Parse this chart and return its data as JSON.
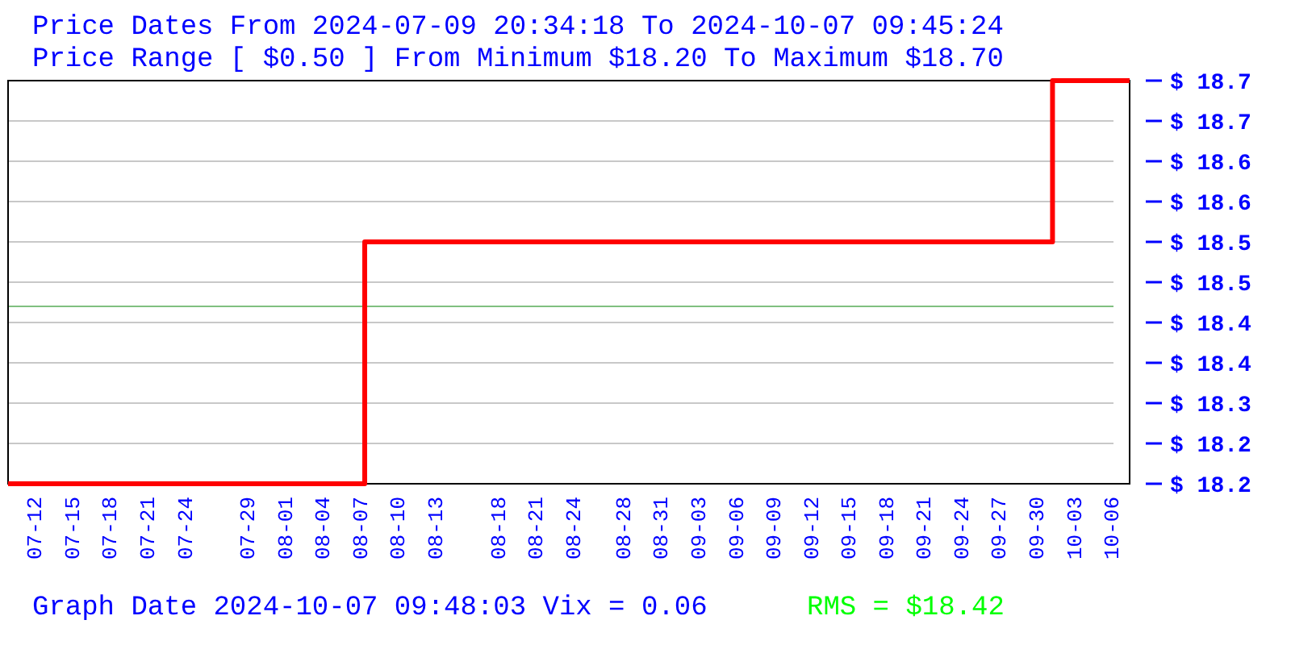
{
  "chart_data": {
    "type": "step",
    "title": "Price Dates From 2024-07-09 20:34:18 To 2024-10-07 09:45:24",
    "subtitle": "Price Range [ $0.50 ] From Minimum $18.20 To Maximum $18.70",
    "x": [
      "2024-07-09T20:34",
      "2024-08-07T08:00",
      "2024-10-01T06:00",
      "2024-10-07T09:45"
    ],
    "series": [
      {
        "color": "#ff0000",
        "values": [
          18.2,
          18.5,
          18.7,
          18.7
        ]
      }
    ],
    "xlim": [
      "2024-07-09T20:34",
      "2024-10-07T09:45"
    ],
    "xticks": [
      {
        "value": "2024-07-12",
        "label": "07-12"
      },
      {
        "value": "2024-07-15",
        "label": "07-15"
      },
      {
        "value": "2024-07-18",
        "label": "07-18"
      },
      {
        "value": "2024-07-21",
        "label": "07-21"
      },
      {
        "value": "2024-07-24",
        "label": "07-24"
      },
      {
        "value": "2024-07-29",
        "label": "07-29"
      },
      {
        "value": "2024-08-01",
        "label": "08-01"
      },
      {
        "value": "2024-08-04",
        "label": "08-04"
      },
      {
        "value": "2024-08-07",
        "label": "08-07"
      },
      {
        "value": "2024-08-10",
        "label": "08-10"
      },
      {
        "value": "2024-08-13",
        "label": "08-13"
      },
      {
        "value": "2024-08-18",
        "label": "08-18"
      },
      {
        "value": "2024-08-21",
        "label": "08-21"
      },
      {
        "value": "2024-08-24",
        "label": "08-24"
      },
      {
        "value": "2024-08-28",
        "label": "08-28"
      },
      {
        "value": "2024-08-31",
        "label": "08-31"
      },
      {
        "value": "2024-09-03",
        "label": "09-03"
      },
      {
        "value": "2024-09-06",
        "label": "09-06"
      },
      {
        "value": "2024-09-09",
        "label": "09-09"
      },
      {
        "value": "2024-09-12",
        "label": "09-12"
      },
      {
        "value": "2024-09-15",
        "label": "09-15"
      },
      {
        "value": "2024-09-18",
        "label": "09-18"
      },
      {
        "value": "2024-09-21",
        "label": "09-21"
      },
      {
        "value": "2024-09-24",
        "label": "09-24"
      },
      {
        "value": "2024-09-27",
        "label": "09-27"
      },
      {
        "value": "2024-09-30",
        "label": "09-30"
      },
      {
        "value": "2024-10-03",
        "label": "10-03"
      },
      {
        "value": "2024-10-06",
        "label": "10-06"
      }
    ],
    "ylim": [
      18.2,
      18.7
    ],
    "yticks": [
      {
        "value": 18.2,
        "label": "$ 18.2"
      },
      {
        "value": 18.25,
        "label": "$ 18.2"
      },
      {
        "value": 18.3,
        "label": "$ 18.3"
      },
      {
        "value": 18.35,
        "label": "$ 18.4"
      },
      {
        "value": 18.4,
        "label": "$ 18.4"
      },
      {
        "value": 18.45,
        "label": "$ 18.5"
      },
      {
        "value": 18.5,
        "label": "$ 18.5"
      },
      {
        "value": 18.55,
        "label": "$ 18.6"
      },
      {
        "value": 18.6,
        "label": "$ 18.6"
      },
      {
        "value": 18.65,
        "label": "$ 18.7"
      },
      {
        "value": 18.7,
        "label": "$ 18.7"
      }
    ],
    "grid": "y",
    "ref_lines": [
      {
        "axis": "y",
        "value": 18.42,
        "color": "#80c080"
      }
    ],
    "annotations": [
      "Graph Date 2024-10-07 09:48:03 Vix = 0.06",
      "RMS = $18.42"
    ]
  }
}
